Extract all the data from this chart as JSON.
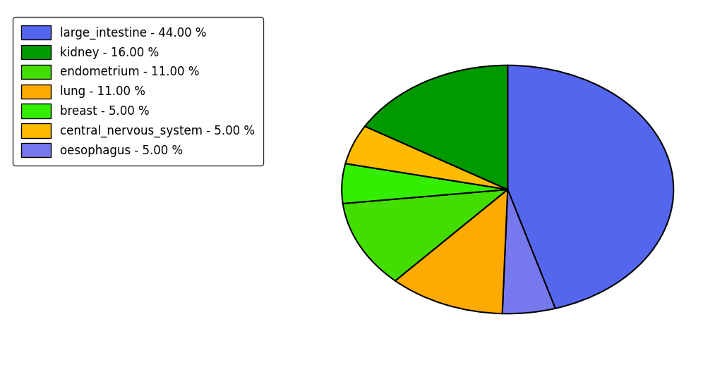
{
  "labels": [
    "large_intestine",
    "oesophagus",
    "lung",
    "endometrium",
    "breast",
    "central_nervous_system",
    "kidney"
  ],
  "values": [
    44.0,
    5.0,
    11.0,
    11.0,
    5.0,
    5.0,
    16.0
  ],
  "colors": [
    "#5566EE",
    "#7777EE",
    "#FFAA00",
    "#44DD00",
    "#33EE00",
    "#FFBB00",
    "#009900"
  ],
  "legend_labels": [
    "large_intestine - 44.00 %",
    "kidney - 16.00 %",
    "endometrium - 11.00 %",
    "lung - 11.00 %",
    "breast - 5.00 %",
    "central_nervous_system - 5.00 %",
    "oesophagus - 5.00 %"
  ],
  "legend_colors": [
    "#5566EE",
    "#009900",
    "#44DD00",
    "#FFAA00",
    "#33EE00",
    "#FFBB00",
    "#7777EE"
  ],
  "startangle": 90,
  "counterclock": false,
  "figsize": [
    10.13,
    5.38
  ],
  "dpi": 100,
  "legend_fontsize": 12,
  "aspect_ratio": 0.75
}
